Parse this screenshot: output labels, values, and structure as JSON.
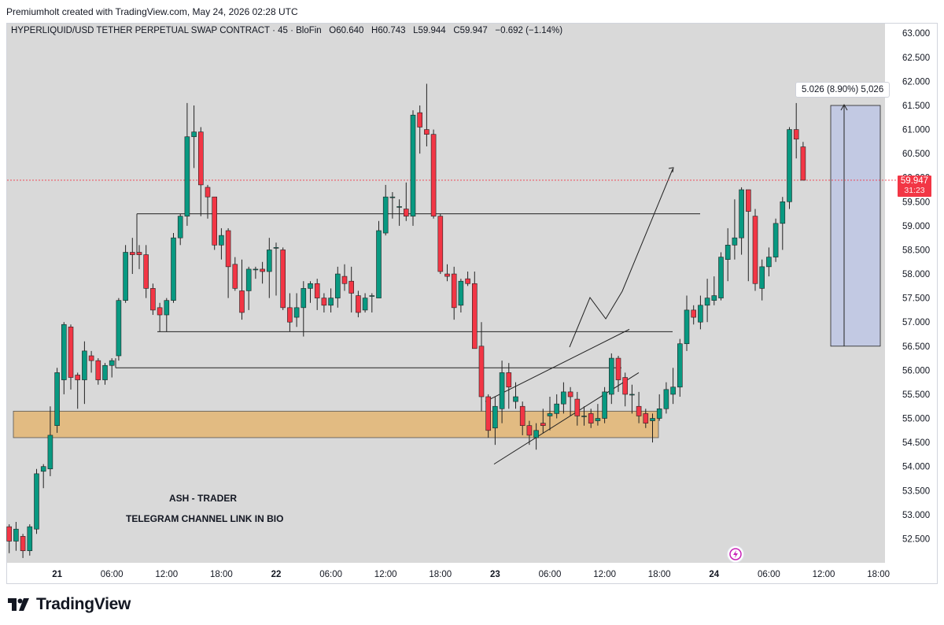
{
  "header_note": "Premiumholt created with TradingView.com, May 24, 2026 02:28 UTC",
  "legend": {
    "symbol": "HYPERLIQUID/USD TETHER PERPETUAL SWAP CONTRACT · 45 · BloFin",
    "open_label": "O",
    "open": "60.640",
    "high_label": "H",
    "high": "60.743",
    "low_label": "L",
    "low": "59.944",
    "close_label": "C",
    "close": "59.947",
    "change": "−0.692 (−1.14%)"
  },
  "price_badge": {
    "price": "59.947",
    "timer": "31:23"
  },
  "measure_label": "5.026 (8.90%) 5,026",
  "annotations": {
    "line1": "ASH - TRADER",
    "line2": "TELEGRAM CHANNEL LINK IN BIO"
  },
  "footer": {
    "brand": "TradingView"
  },
  "colors": {
    "up": "#089981",
    "down": "#f23645",
    "zone": "#e2bb82",
    "measure": "#b9c3e6",
    "background": "#d9d9d9"
  },
  "icons": {
    "flash": "lightning-bolt-icon",
    "logo": "tradingview-logo-icon"
  },
  "chart_data": {
    "type": "candlestick",
    "ylim": [
      52.0,
      63.2
    ],
    "y_ticks": [
      "63.000",
      "62.500",
      "62.000",
      "61.500",
      "61.000",
      "60.500",
      "60.000",
      "59.500",
      "59.000",
      "58.500",
      "58.000",
      "57.500",
      "57.000",
      "56.500",
      "56.000",
      "55.500",
      "55.000",
      "54.500",
      "54.000",
      "53.500",
      "53.000",
      "52.500"
    ],
    "x_ticks": [
      {
        "label": "21",
        "bar": 7,
        "bold": true
      },
      {
        "label": "06:00",
        "bar": 15
      },
      {
        "label": "12:00",
        "bar": 23
      },
      {
        "label": "18:00",
        "bar": 31
      },
      {
        "label": "22",
        "bar": 39,
        "bold": true
      },
      {
        "label": "06:00",
        "bar": 47
      },
      {
        "label": "12:00",
        "bar": 55
      },
      {
        "label": "18:00",
        "bar": 63
      },
      {
        "label": "23",
        "bar": 71,
        "bold": true
      },
      {
        "label": "06:00",
        "bar": 79
      },
      {
        "label": "12:00",
        "bar": 87
      },
      {
        "label": "18:00",
        "bar": 95
      },
      {
        "label": "24",
        "bar": 103,
        "bold": true
      },
      {
        "label": "06:00",
        "bar": 111
      },
      {
        "label": "12:00",
        "bar": 119
      },
      {
        "label": "18:00",
        "bar": 127
      }
    ],
    "candles": [
      [
        52.75,
        52.45,
        52.8,
        52.2
      ],
      [
        52.45,
        52.7,
        52.85,
        52.25
      ],
      [
        52.55,
        52.25,
        52.6,
        52.1
      ],
      [
        52.25,
        52.75,
        52.8,
        52.15
      ],
      [
        52.7,
        53.85,
        53.95,
        52.6
      ],
      [
        53.9,
        54.0,
        54.05,
        53.55
      ],
      [
        53.95,
        54.65,
        55.25,
        53.8
      ],
      [
        54.85,
        55.95,
        56.05,
        54.7
      ],
      [
        55.8,
        56.95,
        57.0,
        55.5
      ],
      [
        56.9,
        55.85,
        56.95,
        55.6
      ],
      [
        55.9,
        55.8,
        55.95,
        55.2
      ],
      [
        55.8,
        56.4,
        56.6,
        55.3
      ],
      [
        56.3,
        56.2,
        56.4,
        55.95
      ],
      [
        56.2,
        55.8,
        56.25,
        55.7
      ],
      [
        55.8,
        56.1,
        56.15,
        55.7
      ],
      [
        56.1,
        56.2,
        56.25,
        55.85
      ],
      [
        56.3,
        57.45,
        57.5,
        56.2
      ],
      [
        57.45,
        58.45,
        58.6,
        57.4
      ],
      [
        58.45,
        58.4,
        58.75,
        58.0
      ],
      [
        58.45,
        58.4,
        58.6,
        58.1
      ],
      [
        58.4,
        57.7,
        58.6,
        57.5
      ],
      [
        57.7,
        57.25,
        57.8,
        57.15
      ],
      [
        57.3,
        57.15,
        57.4,
        56.8
      ],
      [
        57.15,
        57.45,
        57.5,
        56.8
      ],
      [
        57.45,
        58.75,
        58.85,
        57.4
      ],
      [
        58.75,
        59.2,
        59.25,
        58.6
      ],
      [
        59.2,
        60.85,
        61.55,
        59.0
      ],
      [
        60.85,
        60.95,
        61.5,
        60.2
      ],
      [
        60.95,
        59.85,
        61.05,
        59.2
      ],
      [
        59.8,
        59.6,
        59.85,
        59.15
      ],
      [
        59.6,
        58.6,
        59.3,
        58.5
      ],
      [
        58.6,
        58.8,
        58.95,
        58.3
      ],
      [
        58.9,
        58.15,
        58.95,
        57.5
      ],
      [
        58.2,
        57.7,
        58.35,
        57.65
      ],
      [
        57.65,
        57.2,
        58.3,
        57.05
      ],
      [
        57.65,
        58.1,
        58.15,
        57.25
      ],
      [
        58.1,
        58.1,
        58.15,
        57.9
      ],
      [
        58.1,
        58.05,
        58.25,
        57.8
      ],
      [
        58.05,
        58.5,
        58.75,
        57.5
      ],
      [
        58.55,
        58.55,
        58.65,
        57.55
      ],
      [
        58.5,
        57.3,
        58.55,
        57.25
      ],
      [
        57.3,
        57.0,
        57.6,
        56.8
      ],
      [
        57.1,
        57.3,
        57.6,
        56.9
      ],
      [
        57.3,
        57.7,
        57.85,
        56.7
      ],
      [
        57.7,
        57.8,
        57.85,
        57.4
      ],
      [
        57.8,
        57.5,
        57.9,
        57.25
      ],
      [
        57.5,
        57.35,
        57.6,
        57.2
      ],
      [
        57.35,
        57.5,
        57.7,
        57.2
      ],
      [
        57.5,
        58.0,
        58.15,
        57.3
      ],
      [
        57.95,
        57.8,
        58.2,
        57.65
      ],
      [
        57.85,
        57.6,
        58.15,
        57.2
      ],
      [
        57.55,
        57.2,
        57.65,
        57.1
      ],
      [
        57.25,
        57.5,
        57.6,
        57.2
      ],
      [
        57.55,
        57.55,
        57.6,
        57.2
      ],
      [
        57.5,
        58.9,
        59.1,
        57.5
      ],
      [
        58.85,
        59.6,
        59.85,
        58.8
      ],
      [
        59.6,
        59.6,
        59.7,
        59.15
      ],
      [
        59.4,
        59.4,
        59.55,
        59.0
      ],
      [
        59.35,
        59.2,
        59.9,
        59.1
      ],
      [
        59.2,
        61.3,
        61.4,
        59.0
      ],
      [
        61.35,
        61.05,
        61.5,
        60.5
      ],
      [
        61.0,
        60.9,
        61.95,
        60.65
      ],
      [
        60.9,
        59.2,
        61.0,
        59.15
      ],
      [
        59.2,
        58.05,
        59.25,
        58.0
      ],
      [
        58.0,
        57.95,
        58.2,
        57.85
      ],
      [
        58.0,
        57.3,
        58.15,
        57.05
      ],
      [
        57.35,
        57.85,
        57.9,
        57.2
      ],
      [
        57.9,
        57.8,
        58.05,
        57.75
      ],
      [
        57.8,
        56.45,
        58.05,
        56.45
      ],
      [
        56.5,
        55.45,
        57.0,
        55.15
      ],
      [
        55.45,
        54.75,
        55.5,
        54.6
      ],
      [
        54.8,
        55.25,
        55.45,
        54.45
      ],
      [
        55.2,
        55.95,
        56.2,
        54.9
      ],
      [
        55.95,
        55.65,
        56.15,
        55.2
      ],
      [
        55.35,
        55.45,
        55.75,
        55.2
      ],
      [
        55.25,
        54.85,
        55.35,
        54.65
      ],
      [
        54.85,
        54.65,
        54.95,
        54.45
      ],
      [
        54.6,
        54.75,
        54.9,
        54.35
      ],
      [
        54.9,
        54.85,
        55.2,
        54.7
      ],
      [
        55.05,
        55.1,
        55.45,
        54.75
      ],
      [
        55.1,
        55.3,
        55.5,
        55.0
      ],
      [
        55.3,
        55.55,
        55.75,
        55.1
      ],
      [
        55.55,
        55.45,
        55.65,
        55.05
      ],
      [
        55.4,
        55.05,
        55.55,
        54.85
      ],
      [
        55.05,
        55.05,
        55.25,
        54.85
      ],
      [
        55.1,
        54.9,
        55.2,
        54.8
      ],
      [
        54.95,
        55.0,
        55.3,
        54.85
      ],
      [
        55.0,
        55.55,
        55.65,
        54.9
      ],
      [
        55.5,
        56.25,
        56.35,
        55.3
      ],
      [
        56.25,
        55.8,
        56.3,
        55.55
      ],
      [
        55.85,
        55.5,
        55.95,
        55.25
      ],
      [
        55.5,
        55.5,
        55.7,
        55.1
      ],
      [
        55.25,
        55.05,
        55.55,
        54.9
      ],
      [
        55.1,
        54.9,
        55.2,
        54.8
      ],
      [
        54.95,
        55.0,
        55.1,
        54.5
      ],
      [
        55.0,
        55.2,
        55.5,
        54.95
      ],
      [
        55.2,
        55.6,
        55.75,
        55.1
      ],
      [
        55.5,
        55.65,
        56.05,
        55.3
      ],
      [
        55.65,
        56.55,
        56.65,
        55.45
      ],
      [
        56.55,
        57.25,
        57.55,
        56.4
      ],
      [
        57.25,
        57.1,
        57.35,
        56.95
      ],
      [
        57.0,
        57.35,
        57.55,
        56.85
      ],
      [
        57.35,
        57.5,
        57.9,
        57.0
      ],
      [
        57.45,
        57.55,
        57.95,
        57.35
      ],
      [
        57.5,
        58.35,
        58.45,
        57.45
      ],
      [
        58.3,
        58.6,
        58.95,
        57.85
      ],
      [
        58.6,
        58.75,
        59.55,
        58.3
      ],
      [
        58.75,
        59.75,
        59.8,
        58.4
      ],
      [
        59.75,
        59.3,
        59.7,
        57.85
      ],
      [
        59.2,
        57.8,
        59.35,
        57.65
      ],
      [
        57.7,
        58.15,
        58.3,
        57.45
      ],
      [
        58.15,
        58.35,
        58.55,
        57.95
      ],
      [
        58.35,
        59.05,
        59.15,
        58.25
      ],
      [
        59.05,
        59.5,
        59.6,
        58.5
      ],
      [
        59.5,
        61.0,
        61.05,
        59.35
      ],
      [
        61.0,
        60.8,
        61.55,
        60.4
      ],
      [
        60.64,
        59.947,
        60.743,
        59.944
      ]
    ]
  }
}
